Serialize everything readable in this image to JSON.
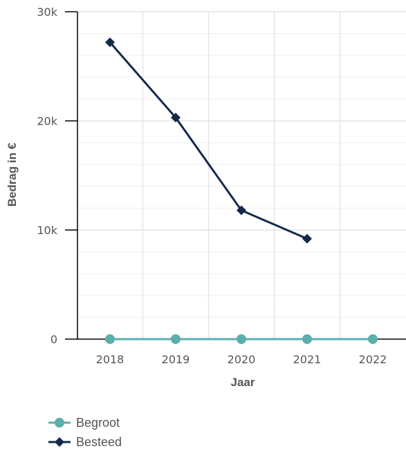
{
  "chart_data": {
    "type": "line",
    "xlabel": "Jaar",
    "ylabel": "Bedrag in €",
    "categories": [
      "2018",
      "2019",
      "2020",
      "2021",
      "2022"
    ],
    "ylim": [
      0,
      30000
    ],
    "yticks": [
      0,
      10000,
      20000,
      30000
    ],
    "ytick_labels": [
      "0",
      "10k",
      "20k",
      "30k"
    ],
    "grid": true,
    "legend_position": "bottom-left",
    "series": [
      {
        "name": "Begroot",
        "color": "#5aaeab",
        "marker": "circle",
        "values": [
          0,
          0,
          0,
          0,
          0
        ]
      },
      {
        "name": "Besteed",
        "color": "#15294a",
        "marker": "diamond",
        "values": [
          27200,
          20300,
          11800,
          9200,
          null
        ]
      }
    ]
  }
}
